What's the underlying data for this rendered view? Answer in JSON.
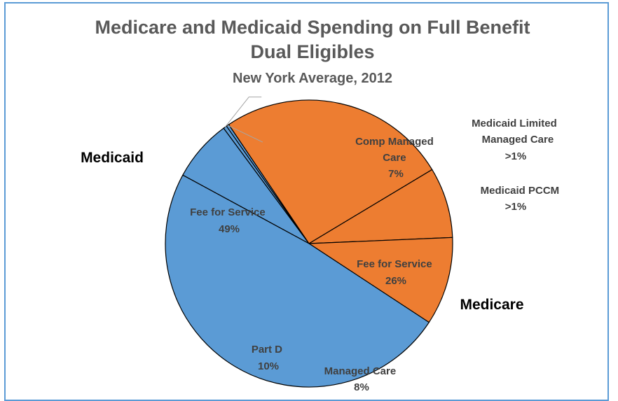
{
  "chart_data": {
    "type": "pie",
    "title": "Medicare and Medicaid Spending on Full Benefit",
    "title_line2": "Dual Eligibles",
    "subtitle": "New York Average, 2012",
    "colors": {
      "medicaid": "#5b9bd5",
      "medicare": "#ed7d31",
      "border": "#000000",
      "frame": "#5b9bd5"
    },
    "groups": [
      {
        "name": "Medicaid",
        "color": "#5b9bd5"
      },
      {
        "name": "Medicare",
        "color": "#ed7d31"
      }
    ],
    "slices": [
      {
        "group": "Medicaid",
        "label": "Comp Managed",
        "label2": "Care",
        "pct_label": "7%",
        "value": 7
      },
      {
        "group": "Medicaid",
        "label": "Medicaid Limited",
        "label2": "Managed Care",
        "pct_label": ">1%",
        "value": 0.4
      },
      {
        "group": "Medicaid",
        "label": "Medicaid PCCM",
        "label2": "",
        "pct_label": ">1%",
        "value": 0.3
      },
      {
        "group": "Medicare",
        "label": "Fee for Service",
        "label2": "",
        "pct_label": "26%",
        "value": 26
      },
      {
        "group": "Medicare",
        "label": "Managed Care",
        "label2": "",
        "pct_label": "8%",
        "value": 8
      },
      {
        "group": "Medicare",
        "label": "Part D",
        "label2": "",
        "pct_label": "10%",
        "value": 10
      },
      {
        "group": "Medicaid",
        "label": "Fee for Service",
        "label2": "",
        "pct_label": "49%",
        "value": 49
      }
    ]
  }
}
